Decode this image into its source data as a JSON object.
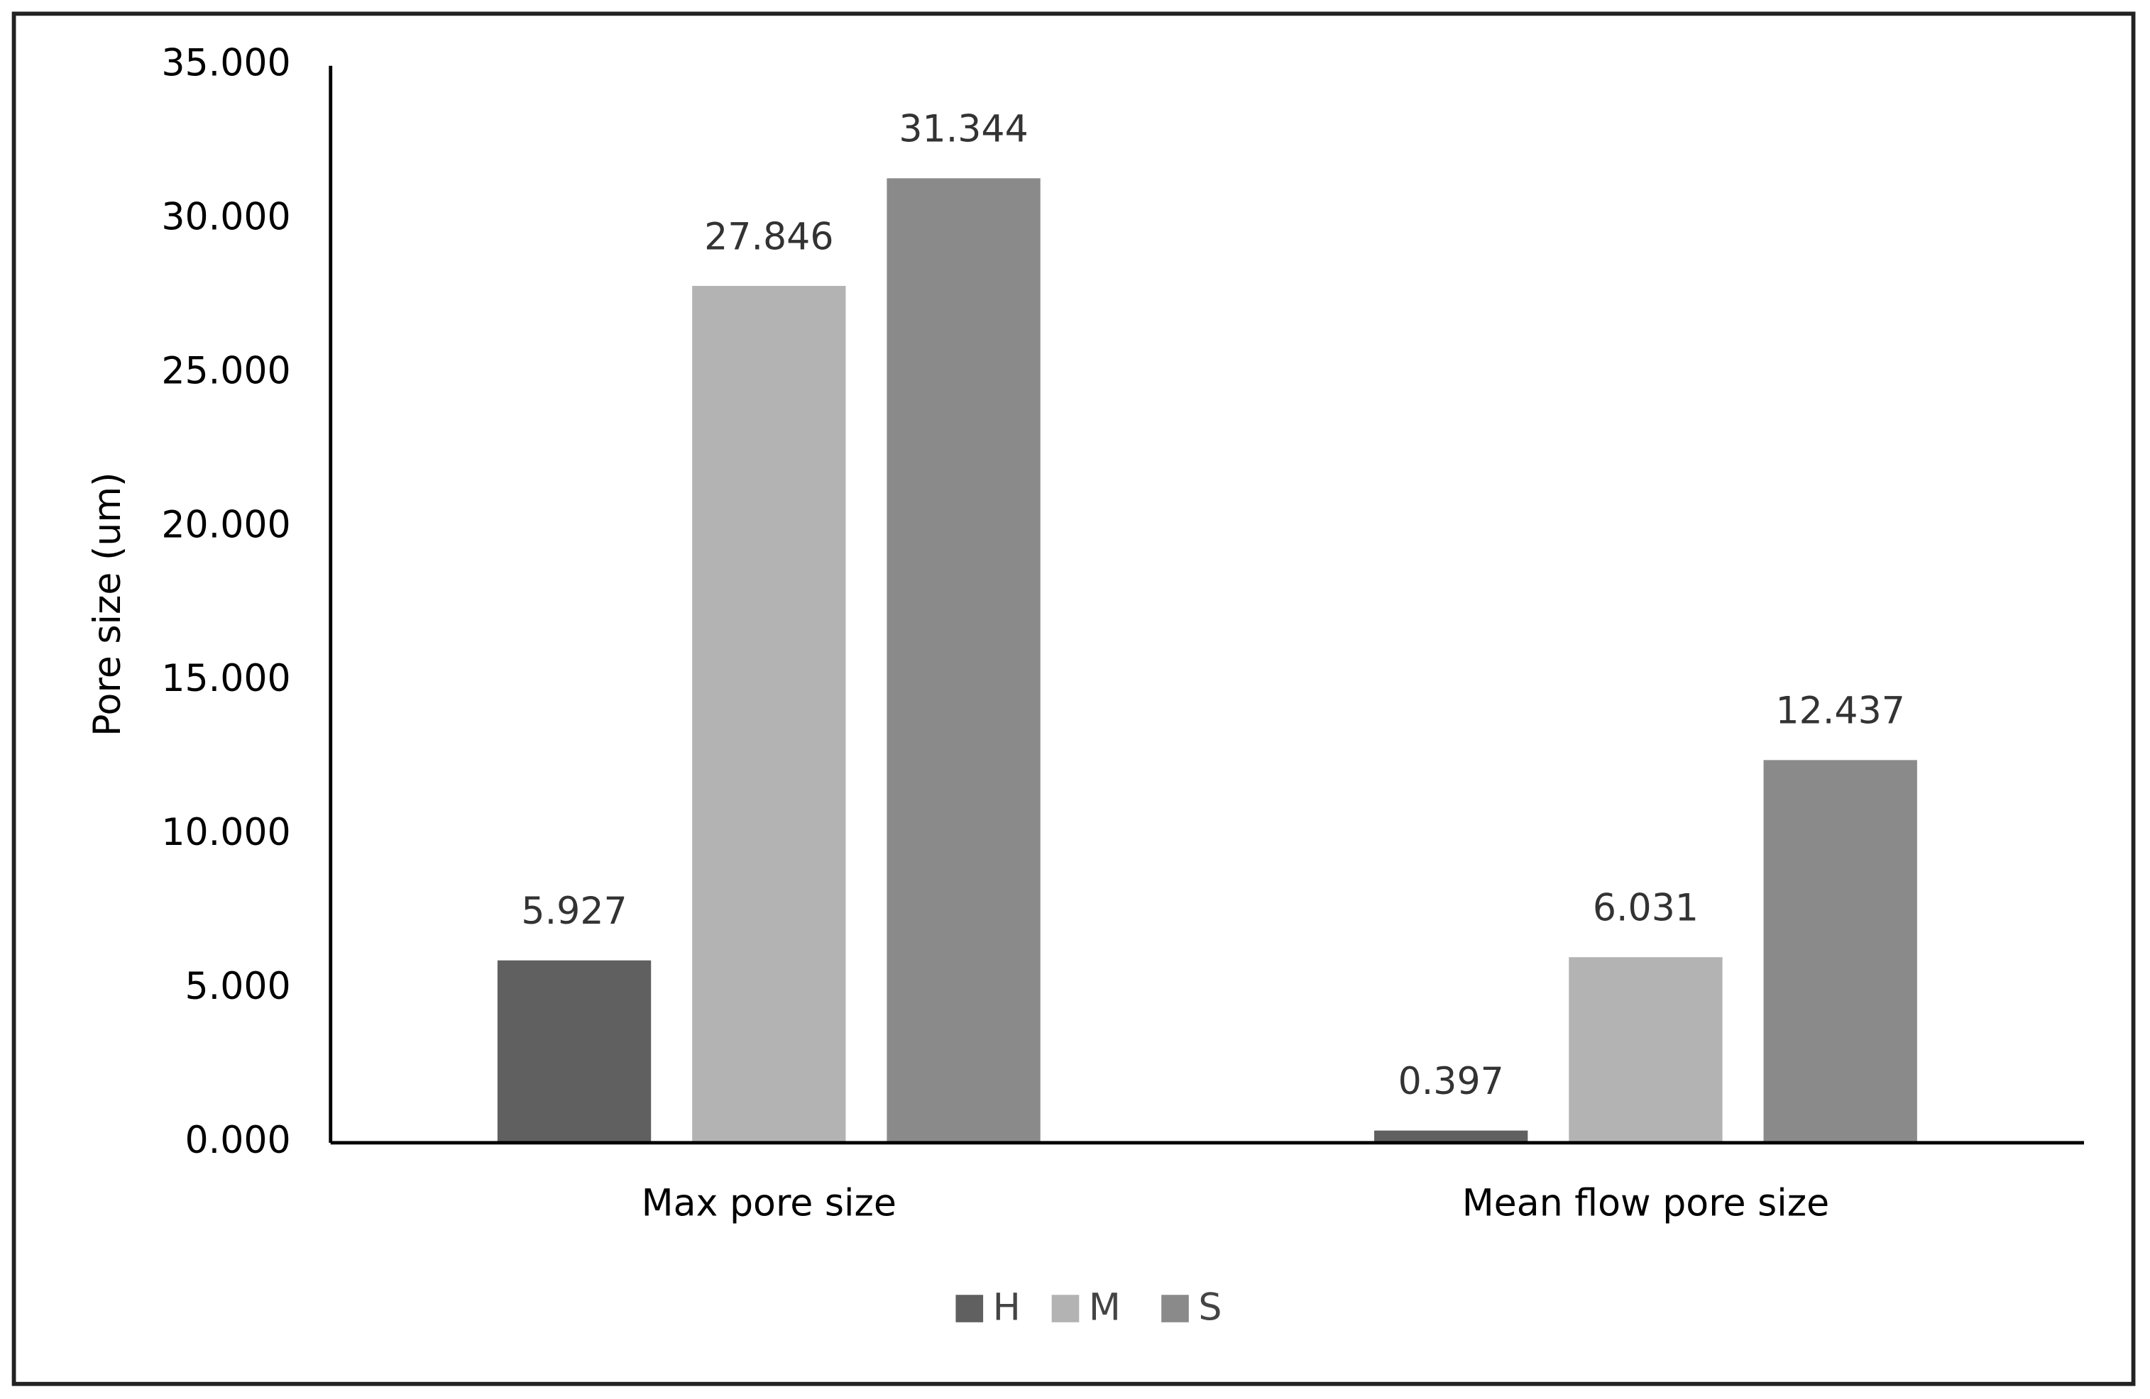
{
  "chart_data": {
    "type": "bar",
    "y_label": "Pore size (um)",
    "categories": [
      "Max pore size",
      "Mean flow pore size"
    ],
    "series": [
      {
        "name": "H",
        "color": "#606060",
        "values": [
          5.927,
          0.397
        ]
      },
      {
        "name": "M",
        "color": "#b3b3b3",
        "values": [
          27.846,
          6.031
        ]
      },
      {
        "name": "S",
        "color": "#8a8a8a",
        "values": [
          31.344,
          12.437
        ]
      }
    ],
    "ylim": [
      0,
      35
    ],
    "yticks": [
      {
        "value": 0,
        "label": "0.000"
      },
      {
        "value": 5,
        "label": "5.000"
      },
      {
        "value": 10,
        "label": "10.000"
      },
      {
        "value": 15,
        "label": "15.000"
      },
      {
        "value": 20,
        "label": "20.000"
      },
      {
        "value": 25,
        "label": "25.000"
      },
      {
        "value": 30,
        "label": "30.000"
      },
      {
        "value": 35,
        "label": "35.000"
      }
    ],
    "grid": false,
    "legend": "bottom"
  }
}
